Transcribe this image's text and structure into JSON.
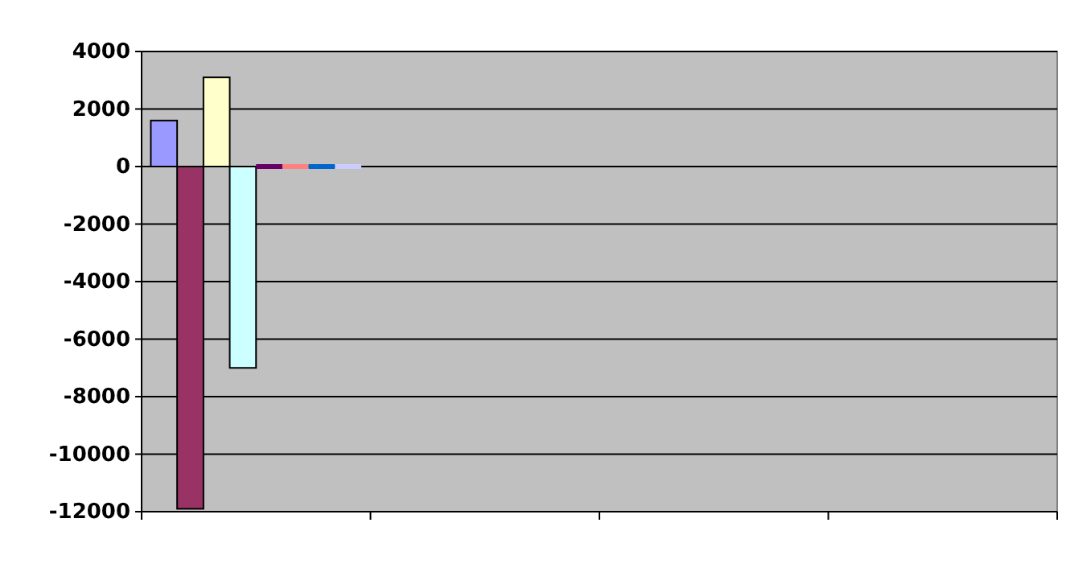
{
  "chart_data": {
    "type": "bar",
    "categories": [
      null,
      null,
      null,
      null
    ],
    "series": [
      {
        "color": "#9999ff",
        "values": [
          1600,
          null,
          null,
          null
        ]
      },
      {
        "color": "#993366",
        "values": [
          -11900,
          null,
          null,
          null
        ]
      },
      {
        "color": "#ffffcc",
        "values": [
          3100,
          null,
          null,
          null
        ]
      },
      {
        "color": "#ccffff",
        "values": [
          -7000,
          null,
          null,
          null
        ]
      },
      {
        "color": "#660066",
        "values": [
          0,
          null,
          null,
          null
        ]
      },
      {
        "color": "#ff8080",
        "values": [
          0,
          null,
          null,
          null
        ]
      },
      {
        "color": "#0066cc",
        "values": [
          0,
          null,
          null,
          null
        ]
      },
      {
        "color": "#ccccff",
        "values": [
          0,
          null,
          null,
          null
        ]
      }
    ],
    "ylim": [
      -12000,
      4000
    ],
    "yticks": [
      -12000,
      -10000,
      -8000,
      -6000,
      -4000,
      -2000,
      0,
      2000,
      4000
    ],
    "grid": "y"
  }
}
